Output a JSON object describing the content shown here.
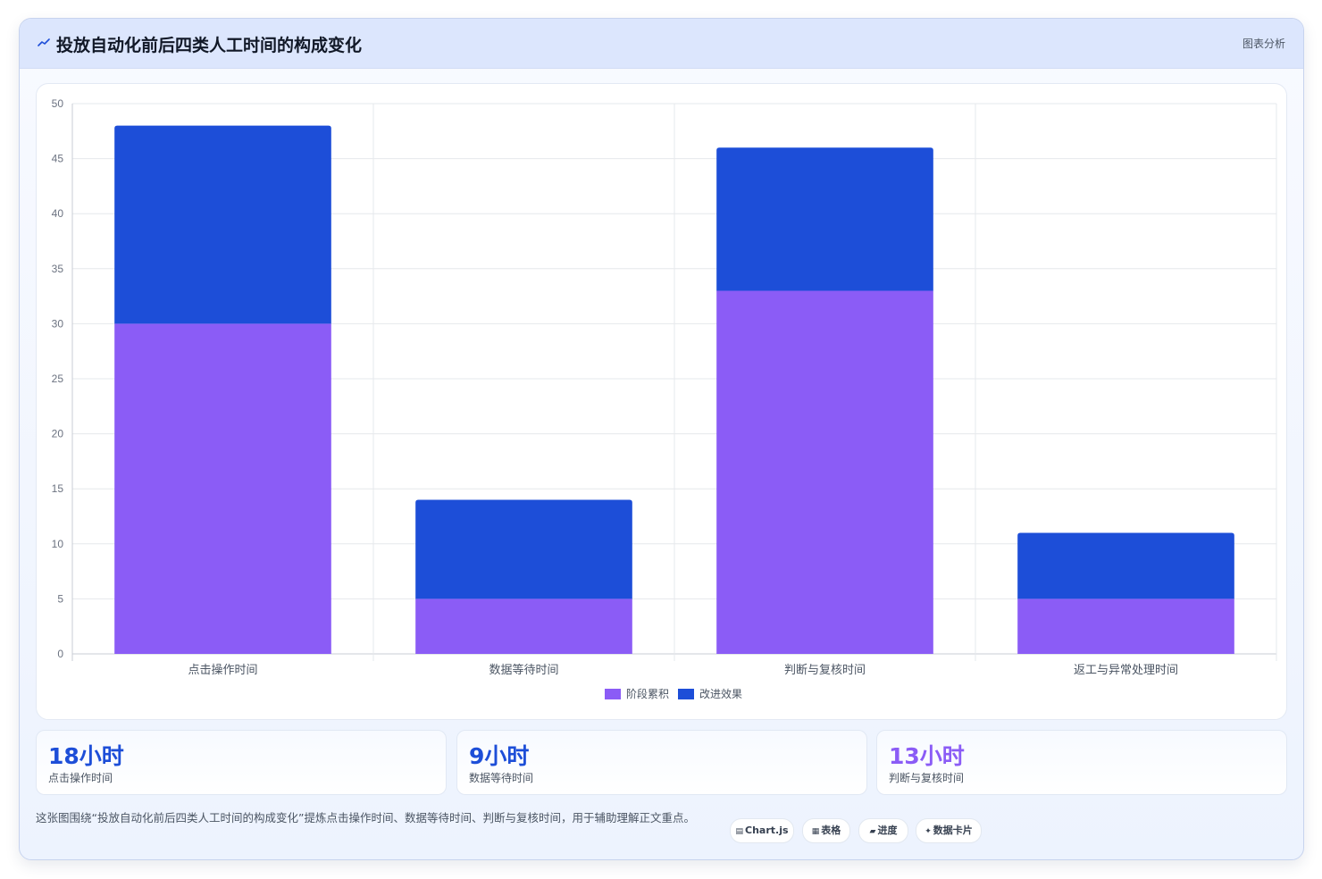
{
  "header": {
    "title": "投放自动化前后四类人工时间的构成变化",
    "tag": "图表分析"
  },
  "chart_data": {
    "type": "bar",
    "stacked": true,
    "categories": [
      "点击操作时间",
      "数据等待时间",
      "判断与复核时间",
      "返工与异常处理时间"
    ],
    "series": [
      {
        "name": "阶段累积",
        "color": "#8b5cf6",
        "values": [
          30,
          5,
          33,
          5
        ]
      },
      {
        "name": "改进效果",
        "color": "#1d4ed8",
        "values": [
          18,
          9,
          13,
          6
        ]
      }
    ],
    "ylim": [
      0,
      50
    ],
    "yticks": [
      0,
      5,
      10,
      15,
      20,
      25,
      30,
      35,
      40,
      45,
      50
    ],
    "grid": true,
    "legend_position": "bottom"
  },
  "stats": [
    {
      "value": "18小时",
      "label": "点击操作时间",
      "color": "#1d4ed8"
    },
    {
      "value": "9小时",
      "label": "数据等待时间",
      "color": "#1d4ed8"
    },
    {
      "value": "13小时",
      "label": "判断与复核时间",
      "color": "#8b5cf6"
    }
  ],
  "note": "这张图围绕“投放自动化前后四类人工时间的构成变化”提炼点击操作时间、数据等待时间、判断与复核时间，用于辅助理解正文重点。",
  "chips": [
    {
      "icon": "chart-icon",
      "glyph": "▤",
      "label": "Chart.js"
    },
    {
      "icon": "table-icon",
      "glyph": "▦",
      "label": "表格"
    },
    {
      "icon": "progress-icon",
      "glyph": "▰",
      "label": "进度"
    },
    {
      "icon": "sparkle-icon",
      "glyph": "✦",
      "label": "数据卡片"
    }
  ]
}
